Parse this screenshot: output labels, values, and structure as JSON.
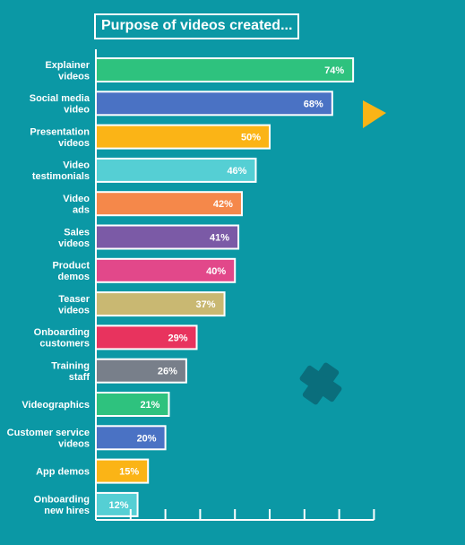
{
  "chart_data": {
    "type": "bar",
    "orientation": "horizontal",
    "title": "Purpose of videos created...",
    "categories": [
      [
        "Explainer",
        "videos"
      ],
      [
        "Social media",
        "video"
      ],
      [
        "Presentation",
        "videos"
      ],
      [
        "Video",
        "testimonials"
      ],
      [
        "Video",
        "ads"
      ],
      [
        "Sales",
        "videos"
      ],
      [
        "Product",
        "demos"
      ],
      [
        "Teaser",
        "videos"
      ],
      [
        "Onboarding",
        "customers"
      ],
      [
        "Training",
        "staff"
      ],
      [
        "Videographics"
      ],
      [
        "Customer service",
        "videos"
      ],
      [
        "App demos"
      ],
      [
        "Onboarding",
        "new hires"
      ]
    ],
    "values": [
      74,
      68,
      50,
      46,
      42,
      41,
      40,
      37,
      29,
      26,
      21,
      20,
      15,
      12
    ],
    "value_labels": [
      "74%",
      "68%",
      "50%",
      "46%",
      "42%",
      "41%",
      "40%",
      "37%",
      "29%",
      "26%",
      "21%",
      "20%",
      "15%",
      "12%"
    ],
    "colors": [
      "#2ec27e",
      "#4a72c4",
      "#fbb416",
      "#55cfd4",
      "#f5884a",
      "#7b5aa6",
      "#e2488a",
      "#c9b872",
      "#e8335e",
      "#787f8a",
      "#2ec27e",
      "#4a72c4",
      "#fbb416",
      "#55cfd4"
    ],
    "xlim": [
      0,
      80
    ],
    "grid": false,
    "legend": "none",
    "axis_color": "#ffffff",
    "decoration_colors": {
      "triangle": "#fbb416",
      "cross": "#0a6e7c"
    }
  }
}
